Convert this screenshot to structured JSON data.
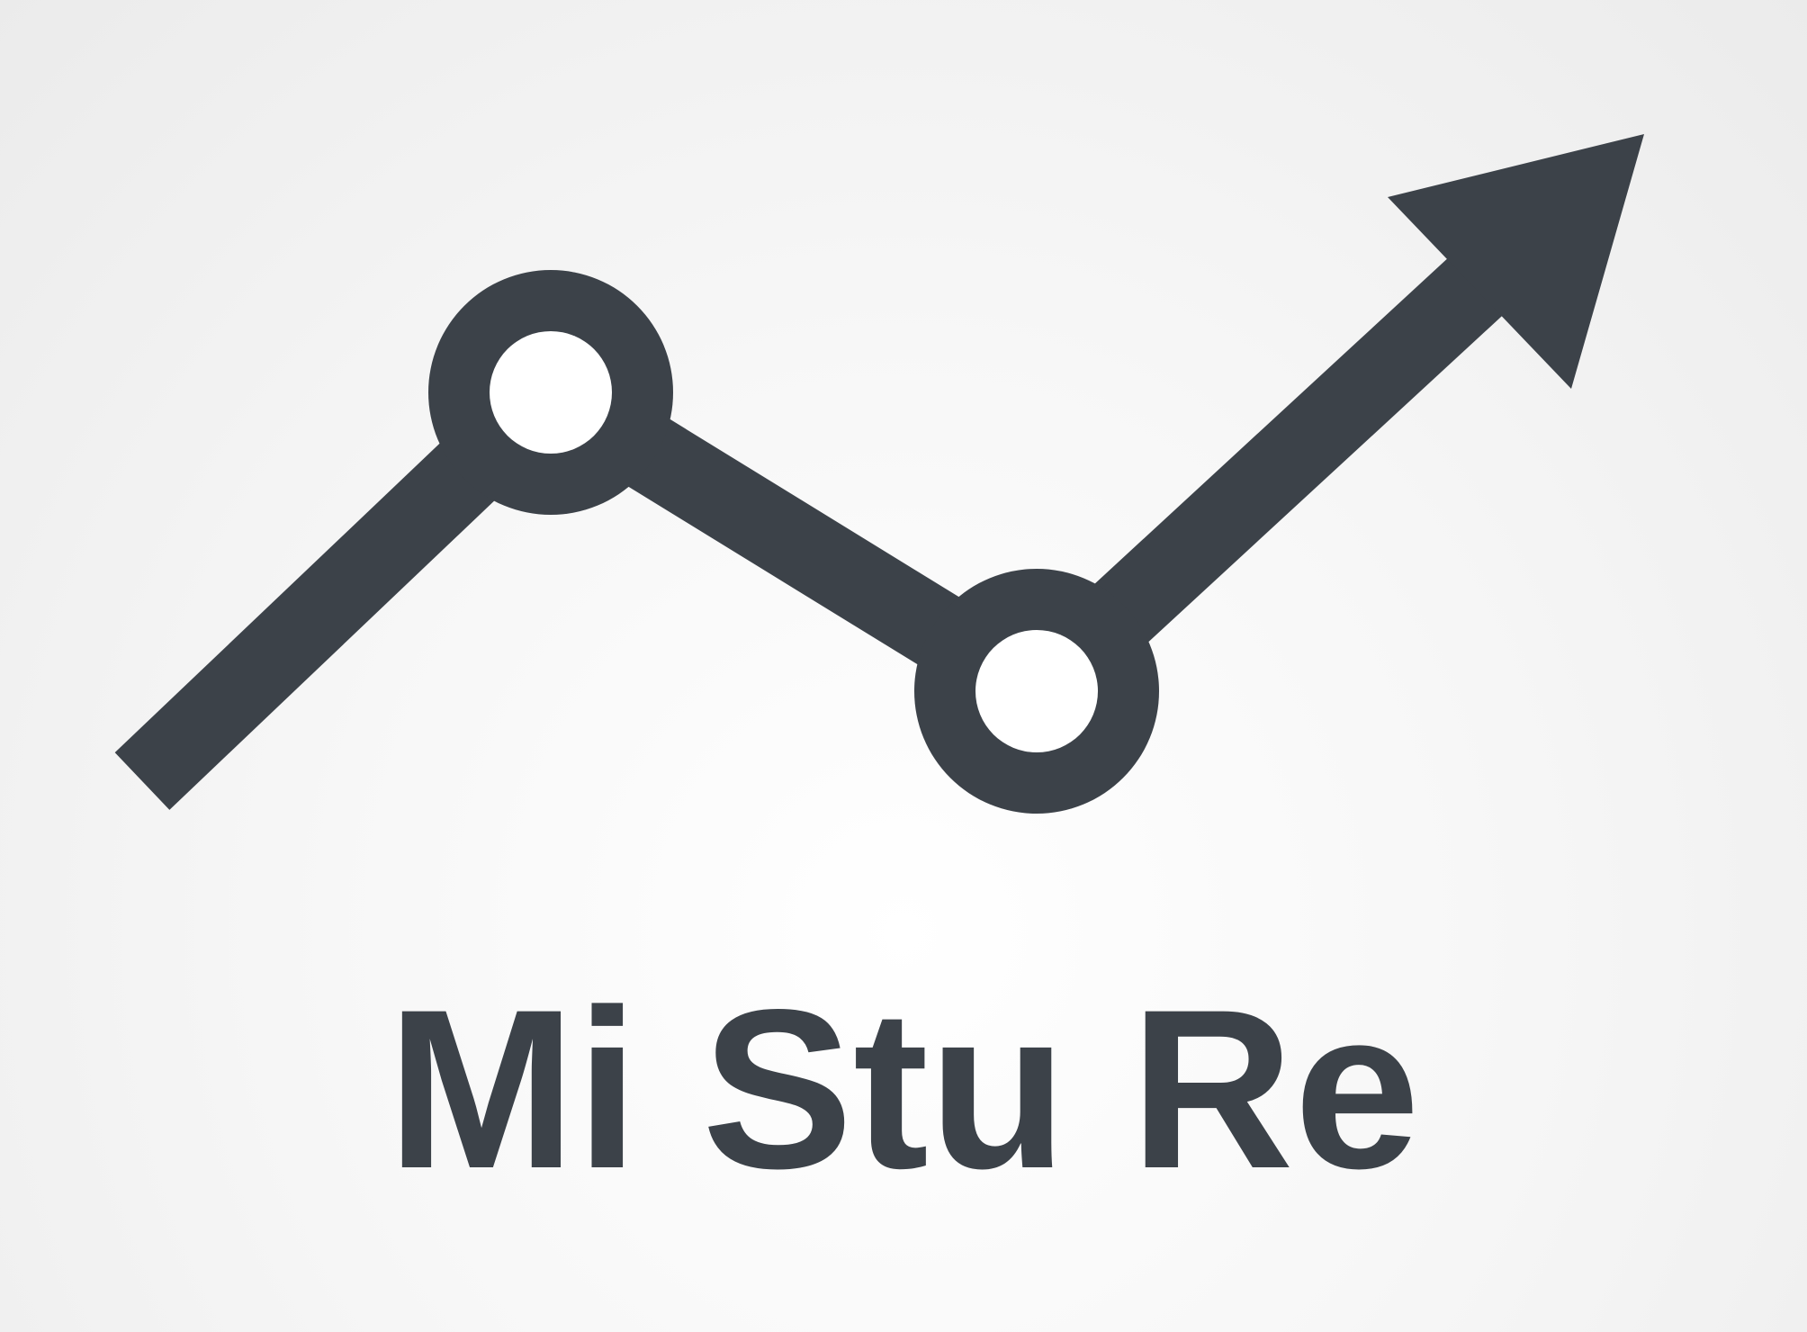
{
  "logo": {
    "wordmark": "Mi Stu Re",
    "icon": "trend-line-arrow-icon",
    "color": "#3c4249"
  }
}
